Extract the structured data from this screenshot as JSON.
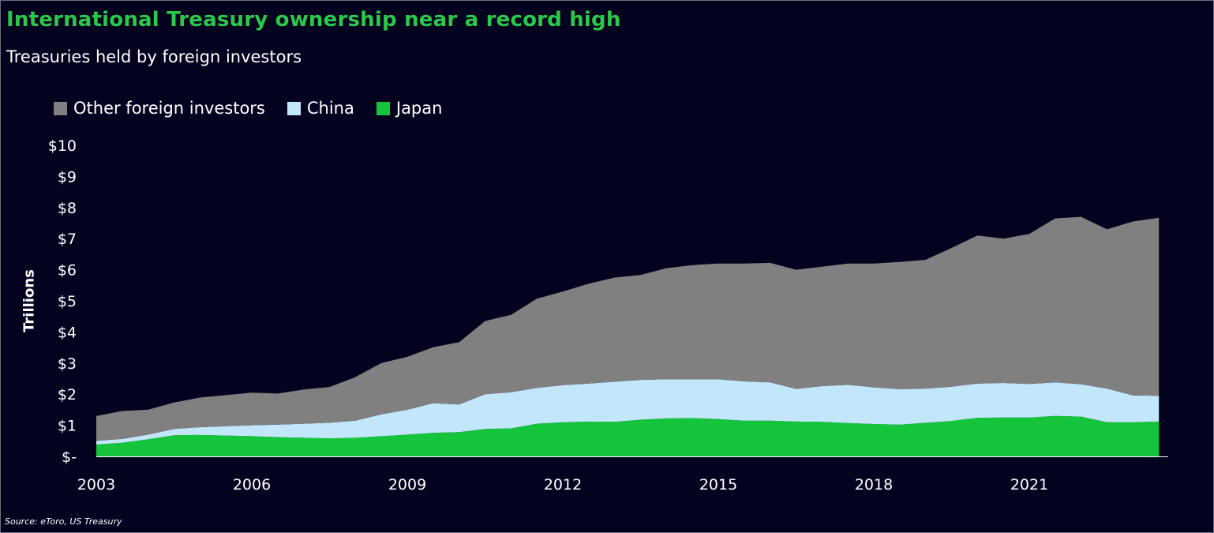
{
  "title": "International Treasury ownership near a record high",
  "subtitle": "Treasuries held by foreign investors",
  "source": "Source: eToro, US Treasury",
  "colors": {
    "background": "#03031f",
    "title": "#2bc94a",
    "other": "#808080",
    "china": "#c2e7fa",
    "japan": "#14c43a"
  },
  "chart_data": {
    "type": "area",
    "stacked": true,
    "title": "International Treasury ownership near a record high",
    "subtitle": "Treasuries held by foreign investors",
    "ylabel": "Trillions",
    "ylim": [
      0,
      10
    ],
    "xlim": [
      2003,
      2023.5
    ],
    "ytick_labels": [
      "$-",
      "$1",
      "$2",
      "$3",
      "$4",
      "$5",
      "$6",
      "$7",
      "$8",
      "$9",
      "$10"
    ],
    "xtick_labels": [
      "2003",
      "2006",
      "2009",
      "2012",
      "2015",
      "2018",
      "2021"
    ],
    "legend": [
      "Other foreign investors",
      "China",
      "Japan"
    ],
    "legend_position": "top-left",
    "grid": false,
    "x": [
      2003.0,
      2003.5,
      2004.0,
      2004.5,
      2005.0,
      2005.5,
      2006.0,
      2006.5,
      2007.0,
      2007.5,
      2008.0,
      2008.5,
      2009.0,
      2009.5,
      2010.0,
      2010.5,
      2011.0,
      2011.5,
      2012.0,
      2012.5,
      2013.0,
      2013.5,
      2014.0,
      2014.5,
      2015.0,
      2015.5,
      2016.0,
      2016.5,
      2017.0,
      2017.5,
      2018.0,
      2018.5,
      2019.0,
      2019.5,
      2020.0,
      2020.5,
      2021.0,
      2021.5,
      2022.0,
      2022.5,
      2023.0,
      2023.5
    ],
    "series": [
      {
        "name": "Japan",
        "values": [
          0.38,
          0.44,
          0.55,
          0.68,
          0.69,
          0.67,
          0.65,
          0.62,
          0.6,
          0.58,
          0.6,
          0.65,
          0.7,
          0.76,
          0.78,
          0.88,
          0.9,
          1.05,
          1.1,
          1.12,
          1.11,
          1.18,
          1.22,
          1.23,
          1.2,
          1.15,
          1.15,
          1.12,
          1.11,
          1.07,
          1.04,
          1.02,
          1.08,
          1.14,
          1.24,
          1.25,
          1.25,
          1.3,
          1.28,
          1.1,
          1.1,
          1.12
        ]
      },
      {
        "name": "China",
        "values": [
          0.12,
          0.12,
          0.15,
          0.2,
          0.25,
          0.3,
          0.35,
          0.4,
          0.45,
          0.5,
          0.55,
          0.7,
          0.8,
          0.95,
          0.89,
          1.12,
          1.16,
          1.15,
          1.19,
          1.22,
          1.29,
          1.28,
          1.26,
          1.25,
          1.28,
          1.26,
          1.23,
          1.05,
          1.15,
          1.23,
          1.18,
          1.14,
          1.1,
          1.1,
          1.1,
          1.11,
          1.08,
          1.08,
          1.04,
          1.08,
          0.86,
          0.83
        ]
      },
      {
        "name": "Other foreign investors",
        "values": [
          0.8,
          0.9,
          0.8,
          0.85,
          0.95,
          1.0,
          1.05,
          1.0,
          1.1,
          1.15,
          1.4,
          1.65,
          1.7,
          1.8,
          2.0,
          2.35,
          2.49,
          2.87,
          3.01,
          3.21,
          3.35,
          3.37,
          3.57,
          3.67,
          3.72,
          3.79,
          3.84,
          3.83,
          3.84,
          3.9,
          3.98,
          4.09,
          4.14,
          4.46,
          4.76,
          4.64,
          4.82,
          5.27,
          5.38,
          5.12,
          5.59,
          5.72
        ]
      }
    ]
  }
}
